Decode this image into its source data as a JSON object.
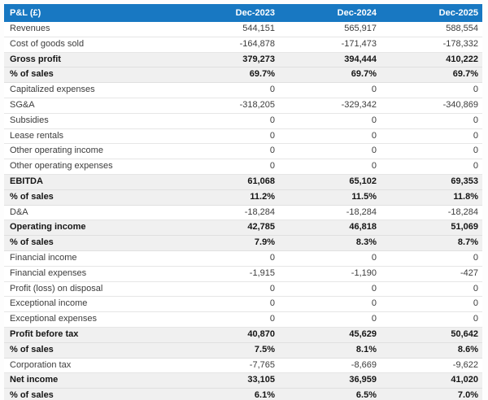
{
  "colors": {
    "header_bg": "#1878c2",
    "header_text": "#ffffff",
    "total_row_bg": "#f0f0f0",
    "normal_row_bg": "#ffffff",
    "row_border": "#e6e6e6",
    "text": "#3c3c3c",
    "total_text": "#151515",
    "page_bg": "#fdfdfd"
  },
  "table": {
    "header": {
      "label": "P&L (£)",
      "columns": [
        "Dec-2023",
        "Dec-2024",
        "Dec-2025"
      ]
    },
    "rows": [
      {
        "label": "Revenues",
        "values": [
          "544,151",
          "565,917",
          "588,554"
        ],
        "style": "normal"
      },
      {
        "label": "Cost of goods sold",
        "values": [
          "-164,878",
          "-171,473",
          "-178,332"
        ],
        "style": "normal"
      },
      {
        "label": "Gross profit",
        "values": [
          "379,273",
          "394,444",
          "410,222"
        ],
        "style": "total"
      },
      {
        "label": "% of sales",
        "values": [
          "69.7%",
          "69.7%",
          "69.7%"
        ],
        "style": "total"
      },
      {
        "label": "Capitalized expenses",
        "values": [
          "0",
          "0",
          "0"
        ],
        "style": "normal"
      },
      {
        "label": "SG&A",
        "values": [
          "-318,205",
          "-329,342",
          "-340,869"
        ],
        "style": "normal"
      },
      {
        "label": "Subsidies",
        "values": [
          "0",
          "0",
          "0"
        ],
        "style": "normal"
      },
      {
        "label": "Lease rentals",
        "values": [
          "0",
          "0",
          "0"
        ],
        "style": "normal"
      },
      {
        "label": "Other operating income",
        "values": [
          "0",
          "0",
          "0"
        ],
        "style": "normal"
      },
      {
        "label": "Other operating expenses",
        "values": [
          "0",
          "0",
          "0"
        ],
        "style": "normal"
      },
      {
        "label": "EBITDA",
        "values": [
          "61,068",
          "65,102",
          "69,353"
        ],
        "style": "total"
      },
      {
        "label": "% of sales",
        "values": [
          "11.2%",
          "11.5%",
          "11.8%"
        ],
        "style": "total"
      },
      {
        "label": "D&A",
        "values": [
          "-18,284",
          "-18,284",
          "-18,284"
        ],
        "style": "normal"
      },
      {
        "label": "Operating income",
        "values": [
          "42,785",
          "46,818",
          "51,069"
        ],
        "style": "total"
      },
      {
        "label": "% of sales",
        "values": [
          "7.9%",
          "8.3%",
          "8.7%"
        ],
        "style": "total"
      },
      {
        "label": "Financial income",
        "values": [
          "0",
          "0",
          "0"
        ],
        "style": "normal"
      },
      {
        "label": "Financial expenses",
        "values": [
          "-1,915",
          "-1,190",
          "-427"
        ],
        "style": "normal"
      },
      {
        "label": "Profit (loss) on disposal",
        "values": [
          "0",
          "0",
          "0"
        ],
        "style": "normal"
      },
      {
        "label": "Exceptional income",
        "values": [
          "0",
          "0",
          "0"
        ],
        "style": "normal"
      },
      {
        "label": "Exceptional expenses",
        "values": [
          "0",
          "0",
          "0"
        ],
        "style": "normal"
      },
      {
        "label": "Profit before tax",
        "values": [
          "40,870",
          "45,629",
          "50,642"
        ],
        "style": "total"
      },
      {
        "label": "% of sales",
        "values": [
          "7.5%",
          "8.1%",
          "8.6%"
        ],
        "style": "total"
      },
      {
        "label": "Corporation tax",
        "values": [
          "-7,765",
          "-8,669",
          "-9,622"
        ],
        "style": "normal"
      },
      {
        "label": "Net income",
        "values": [
          "33,105",
          "36,959",
          "41,020"
        ],
        "style": "total"
      },
      {
        "label": "% of sales",
        "values": [
          "6.1%",
          "6.5%",
          "7.0%"
        ],
        "style": "total"
      }
    ]
  },
  "chart_data": {
    "type": "table",
    "title": "P&L (£)",
    "columns": [
      "P&L (£)",
      "Dec-2023",
      "Dec-2024",
      "Dec-2025"
    ],
    "rows": [
      {
        "label": "Revenues",
        "values": [
          544151,
          565917,
          588554
        ]
      },
      {
        "label": "Cost of goods sold",
        "values": [
          -164878,
          -171473,
          -178332
        ]
      },
      {
        "label": "Gross profit",
        "values": [
          379273,
          394444,
          410222
        ]
      },
      {
        "label": "% of sales",
        "values": [
          69.7,
          69.7,
          69.7
        ],
        "unit": "%"
      },
      {
        "label": "Capitalized expenses",
        "values": [
          0,
          0,
          0
        ]
      },
      {
        "label": "SG&A",
        "values": [
          -318205,
          -329342,
          -340869
        ]
      },
      {
        "label": "Subsidies",
        "values": [
          0,
          0,
          0
        ]
      },
      {
        "label": "Lease rentals",
        "values": [
          0,
          0,
          0
        ]
      },
      {
        "label": "Other operating income",
        "values": [
          0,
          0,
          0
        ]
      },
      {
        "label": "Other operating expenses",
        "values": [
          0,
          0,
          0
        ]
      },
      {
        "label": "EBITDA",
        "values": [
          61068,
          65102,
          69353
        ]
      },
      {
        "label": "% of sales",
        "values": [
          11.2,
          11.5,
          11.8
        ],
        "unit": "%"
      },
      {
        "label": "D&A",
        "values": [
          -18284,
          -18284,
          -18284
        ]
      },
      {
        "label": "Operating income",
        "values": [
          42785,
          46818,
          51069
        ]
      },
      {
        "label": "% of sales",
        "values": [
          7.9,
          8.3,
          8.7
        ],
        "unit": "%"
      },
      {
        "label": "Financial income",
        "values": [
          0,
          0,
          0
        ]
      },
      {
        "label": "Financial expenses",
        "values": [
          -1915,
          -1190,
          -427
        ]
      },
      {
        "label": "Profit (loss) on disposal",
        "values": [
          0,
          0,
          0
        ]
      },
      {
        "label": "Exceptional income",
        "values": [
          0,
          0,
          0
        ]
      },
      {
        "label": "Exceptional expenses",
        "values": [
          0,
          0,
          0
        ]
      },
      {
        "label": "Profit before tax",
        "values": [
          40870,
          45629,
          50642
        ]
      },
      {
        "label": "% of sales",
        "values": [
          7.5,
          8.1,
          8.6
        ],
        "unit": "%"
      },
      {
        "label": "Corporation tax",
        "values": [
          -7765,
          -8669,
          -9622
        ]
      },
      {
        "label": "Net income",
        "values": [
          33105,
          36959,
          41020
        ]
      },
      {
        "label": "% of sales",
        "values": [
          6.1,
          6.5,
          7.0
        ],
        "unit": "%"
      }
    ]
  }
}
